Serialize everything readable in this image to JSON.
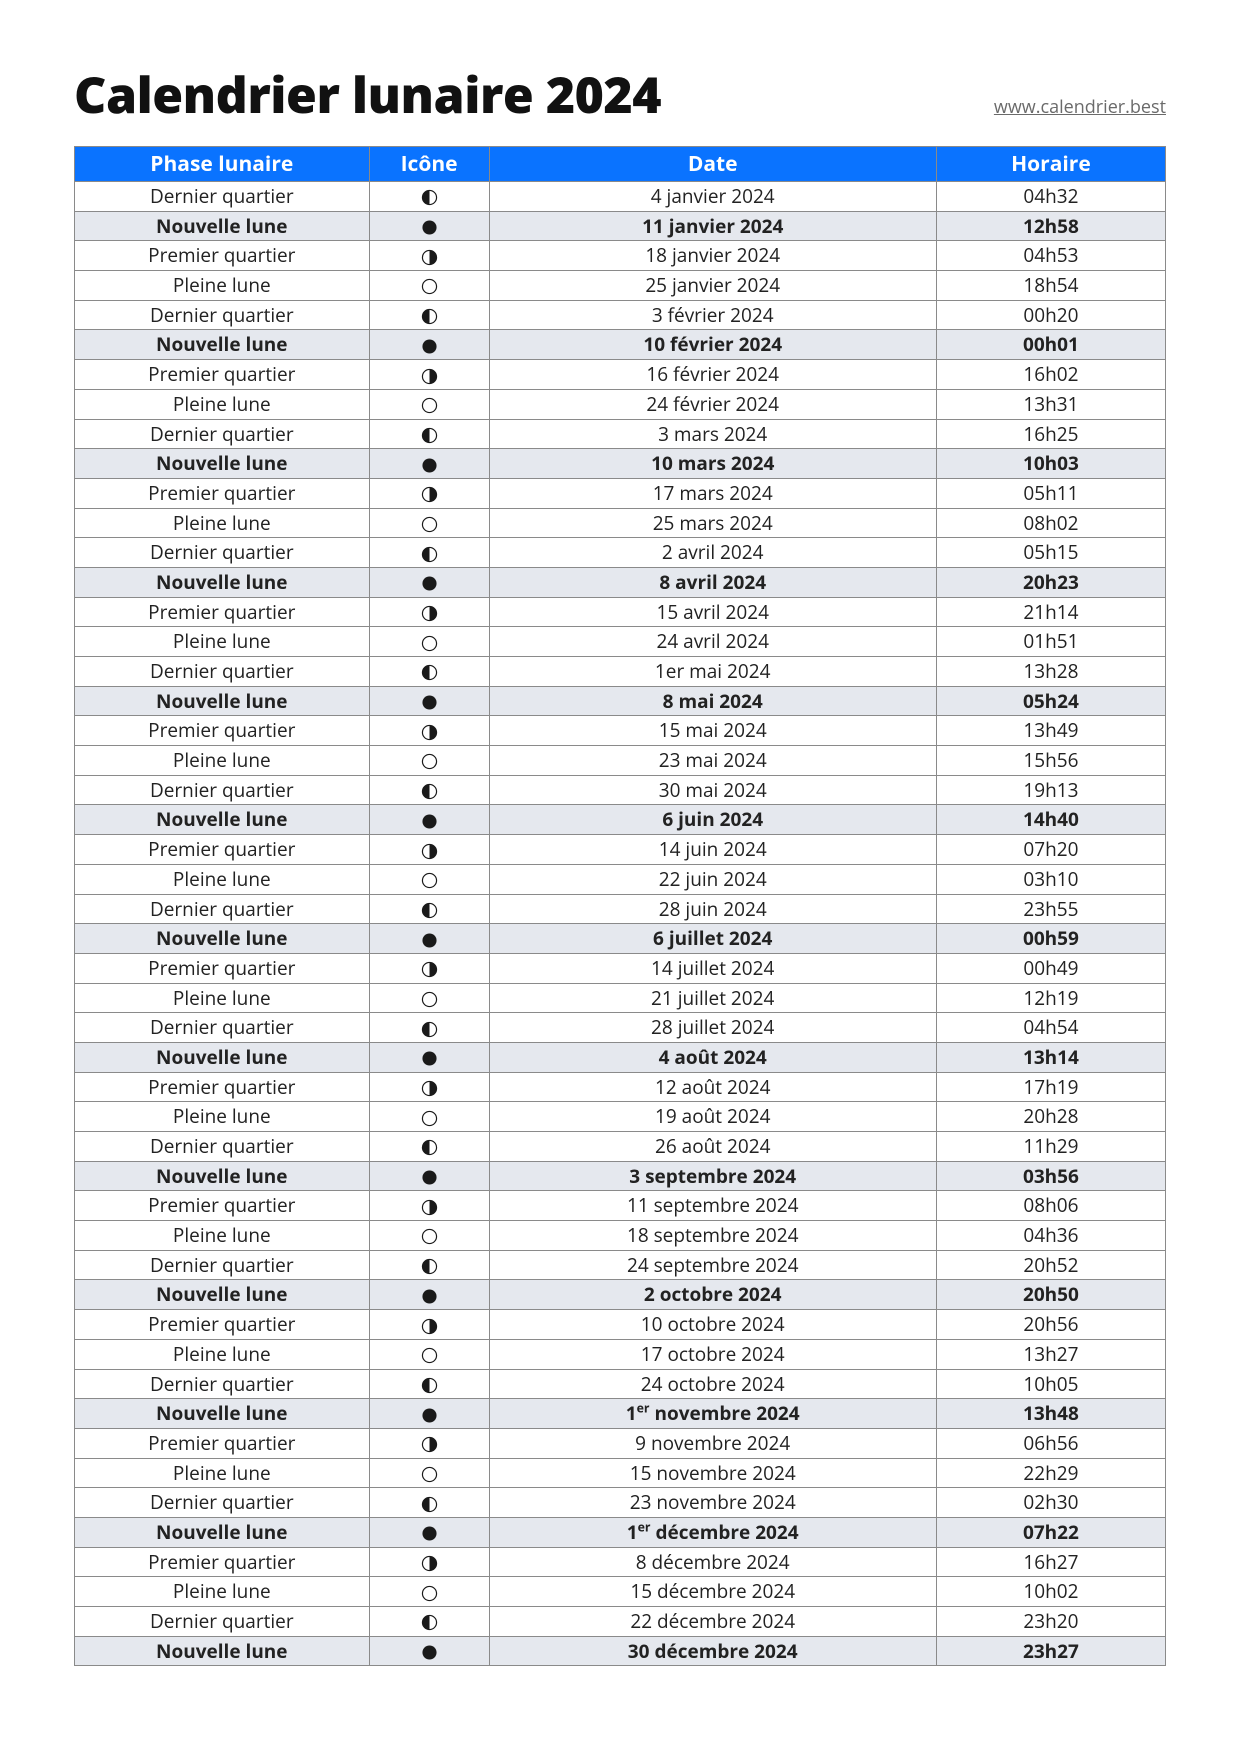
{
  "title": "Calendrier lunaire 2024",
  "site_link": "www.calendrier.best",
  "colors": {
    "header_bg": "#0a73ff",
    "header_fg": "#ffffff",
    "row_highlight_bg": "#e5e8ee",
    "border": "#8a8a8a",
    "text": "#222222",
    "link": "#6a6a6a",
    "icon_color": "#1a1a1a"
  },
  "columns": [
    "Phase lunaire",
    "Icône",
    "Date",
    "Horaire"
  ],
  "icon_svg": {
    "new": "<svg class='moon' viewBox='0 0 20 20'><circle cx='10' cy='10' r='8.3' fill='#1a1a1a'/></svg>",
    "full": "<svg class='moon' viewBox='0 0 20 20'><circle cx='10' cy='10' r='8.3' fill='none' stroke='#1a1a1a' stroke-width='1.4'/></svg>",
    "first": "<svg class='moon' viewBox='0 0 20 20'><circle cx='10' cy='10' r='8.3' fill='none' stroke='#1a1a1a' stroke-width='1.4'/><path d='M10 1.7 A8.3 8.3 0 0 1 10 18.3 Z' fill='#1a1a1a'/></svg>",
    "last": "<svg class='moon' viewBox='0 0 20 20'><circle cx='10' cy='10' r='8.3' fill='none' stroke='#1a1a1a' stroke-width='1.4'/><path d='M10 1.7 A8.3 8.3 0 0 0 10 18.3 Z' fill='#1a1a1a'/></svg>"
  },
  "rows": [
    {
      "phase": "Dernier quartier",
      "icon": "last",
      "date": "4 janvier 2024",
      "time": "04h32",
      "bold": false
    },
    {
      "phase": "Nouvelle lune",
      "icon": "new",
      "date": "11 janvier 2024",
      "time": "12h58",
      "bold": true
    },
    {
      "phase": "Premier quartier",
      "icon": "first",
      "date": "18 janvier 2024",
      "time": "04h53",
      "bold": false
    },
    {
      "phase": "Pleine lune",
      "icon": "full",
      "date": "25 janvier 2024",
      "time": "18h54",
      "bold": false
    },
    {
      "phase": "Dernier quartier",
      "icon": "last",
      "date": "3 février 2024",
      "time": "00h20",
      "bold": false
    },
    {
      "phase": "Nouvelle lune",
      "icon": "new",
      "date": "10 février 2024",
      "time": "00h01",
      "bold": true
    },
    {
      "phase": "Premier quartier",
      "icon": "first",
      "date": "16 février 2024",
      "time": "16h02",
      "bold": false
    },
    {
      "phase": "Pleine lune",
      "icon": "full",
      "date": "24 février 2024",
      "time": "13h31",
      "bold": false
    },
    {
      "phase": "Dernier quartier",
      "icon": "last",
      "date": "3 mars 2024",
      "time": "16h25",
      "bold": false
    },
    {
      "phase": "Nouvelle lune",
      "icon": "new",
      "date": "10 mars 2024",
      "time": "10h03",
      "bold": true
    },
    {
      "phase": "Premier quartier",
      "icon": "first",
      "date": "17 mars 2024",
      "time": "05h11",
      "bold": false
    },
    {
      "phase": "Pleine lune",
      "icon": "full",
      "date": "25 mars 2024",
      "time": "08h02",
      "bold": false
    },
    {
      "phase": "Dernier quartier",
      "icon": "last",
      "date": "2 avril 2024",
      "time": "05h15",
      "bold": false
    },
    {
      "phase": "Nouvelle lune",
      "icon": "new",
      "date": "8 avril 2024",
      "time": "20h23",
      "bold": true
    },
    {
      "phase": "Premier quartier",
      "icon": "first",
      "date": "15 avril 2024",
      "time": "21h14",
      "bold": false
    },
    {
      "phase": "Pleine lune",
      "icon": "full",
      "date": "24 avril 2024",
      "time": "01h51",
      "bold": false
    },
    {
      "phase": "Dernier quartier",
      "icon": "last",
      "date": "1er mai 2024",
      "time": "13h28",
      "bold": false
    },
    {
      "phase": "Nouvelle lune",
      "icon": "new",
      "date": "8 mai 2024",
      "time": "05h24",
      "bold": true
    },
    {
      "phase": "Premier quartier",
      "icon": "first",
      "date": "15 mai 2024",
      "time": "13h49",
      "bold": false
    },
    {
      "phase": "Pleine lune",
      "icon": "full",
      "date": "23 mai 2024",
      "time": "15h56",
      "bold": false
    },
    {
      "phase": "Dernier quartier",
      "icon": "last",
      "date": "30 mai 2024",
      "time": "19h13",
      "bold": false
    },
    {
      "phase": "Nouvelle lune",
      "icon": "new",
      "date": "6 juin 2024",
      "time": "14h40",
      "bold": true
    },
    {
      "phase": "Premier quartier",
      "icon": "first",
      "date": "14 juin 2024",
      "time": "07h20",
      "bold": false
    },
    {
      "phase": "Pleine lune",
      "icon": "full",
      "date": "22 juin 2024",
      "time": "03h10",
      "bold": false
    },
    {
      "phase": "Dernier quartier",
      "icon": "last",
      "date": "28 juin 2024",
      "time": "23h55",
      "bold": false
    },
    {
      "phase": "Nouvelle lune",
      "icon": "new",
      "date": "6 juillet 2024",
      "time": "00h59",
      "bold": true
    },
    {
      "phase": "Premier quartier",
      "icon": "first",
      "date": "14 juillet 2024",
      "time": "00h49",
      "bold": false
    },
    {
      "phase": "Pleine lune",
      "icon": "full",
      "date": "21 juillet 2024",
      "time": "12h19",
      "bold": false
    },
    {
      "phase": "Dernier quartier",
      "icon": "last",
      "date": "28 juillet 2024",
      "time": "04h54",
      "bold": false
    },
    {
      "phase": "Nouvelle lune",
      "icon": "new",
      "date": "4 août 2024",
      "time": "13h14",
      "bold": true
    },
    {
      "phase": "Premier quartier",
      "icon": "first",
      "date": "12 août 2024",
      "time": "17h19",
      "bold": false
    },
    {
      "phase": "Pleine lune",
      "icon": "full",
      "date": "19 août 2024",
      "time": "20h28",
      "bold": false
    },
    {
      "phase": "Dernier quartier",
      "icon": "last",
      "date": "26 août 2024",
      "time": "11h29",
      "bold": false
    },
    {
      "phase": "Nouvelle lune",
      "icon": "new",
      "date": "3 septembre 2024",
      "time": "03h56",
      "bold": true
    },
    {
      "phase": "Premier quartier",
      "icon": "first",
      "date": "11 septembre 2024",
      "time": "08h06",
      "bold": false
    },
    {
      "phase": "Pleine lune",
      "icon": "full",
      "date": "18 septembre 2024",
      "time": "04h36",
      "bold": false
    },
    {
      "phase": "Dernier quartier",
      "icon": "last",
      "date": "24 septembre 2024",
      "time": "20h52",
      "bold": false
    },
    {
      "phase": "Nouvelle lune",
      "icon": "new",
      "date": "2 octobre 2024",
      "time": "20h50",
      "bold": true
    },
    {
      "phase": "Premier quartier",
      "icon": "first",
      "date": "10 octobre 2024",
      "time": "20h56",
      "bold": false
    },
    {
      "phase": "Pleine lune",
      "icon": "full",
      "date": "17 octobre 2024",
      "time": "13h27",
      "bold": false
    },
    {
      "phase": "Dernier quartier",
      "icon": "last",
      "date": "24 octobre 2024",
      "time": "10h05",
      "bold": false
    },
    {
      "phase": "Nouvelle lune",
      "icon": "new",
      "date": "1<sup>er</sup> novembre 2024",
      "time": "13h48",
      "bold": true
    },
    {
      "phase": "Premier quartier",
      "icon": "first",
      "date": "9 novembre 2024",
      "time": "06h56",
      "bold": false
    },
    {
      "phase": "Pleine lune",
      "icon": "full",
      "date": "15 novembre 2024",
      "time": "22h29",
      "bold": false
    },
    {
      "phase": "Dernier quartier",
      "icon": "last",
      "date": "23 novembre 2024",
      "time": "02h30",
      "bold": false
    },
    {
      "phase": "Nouvelle lune",
      "icon": "new",
      "date": "1<sup>er</sup> décembre 2024",
      "time": "07h22",
      "bold": true
    },
    {
      "phase": "Premier quartier",
      "icon": "first",
      "date": "8 décembre 2024",
      "time": "16h27",
      "bold": false
    },
    {
      "phase": "Pleine lune",
      "icon": "full",
      "date": "15 décembre 2024",
      "time": "10h02",
      "bold": false
    },
    {
      "phase": "Dernier quartier",
      "icon": "last",
      "date": "22 décembre 2024",
      "time": "23h20",
      "bold": false
    },
    {
      "phase": "Nouvelle lune",
      "icon": "new",
      "date": "30 décembre 2024",
      "time": "23h27",
      "bold": true
    }
  ]
}
